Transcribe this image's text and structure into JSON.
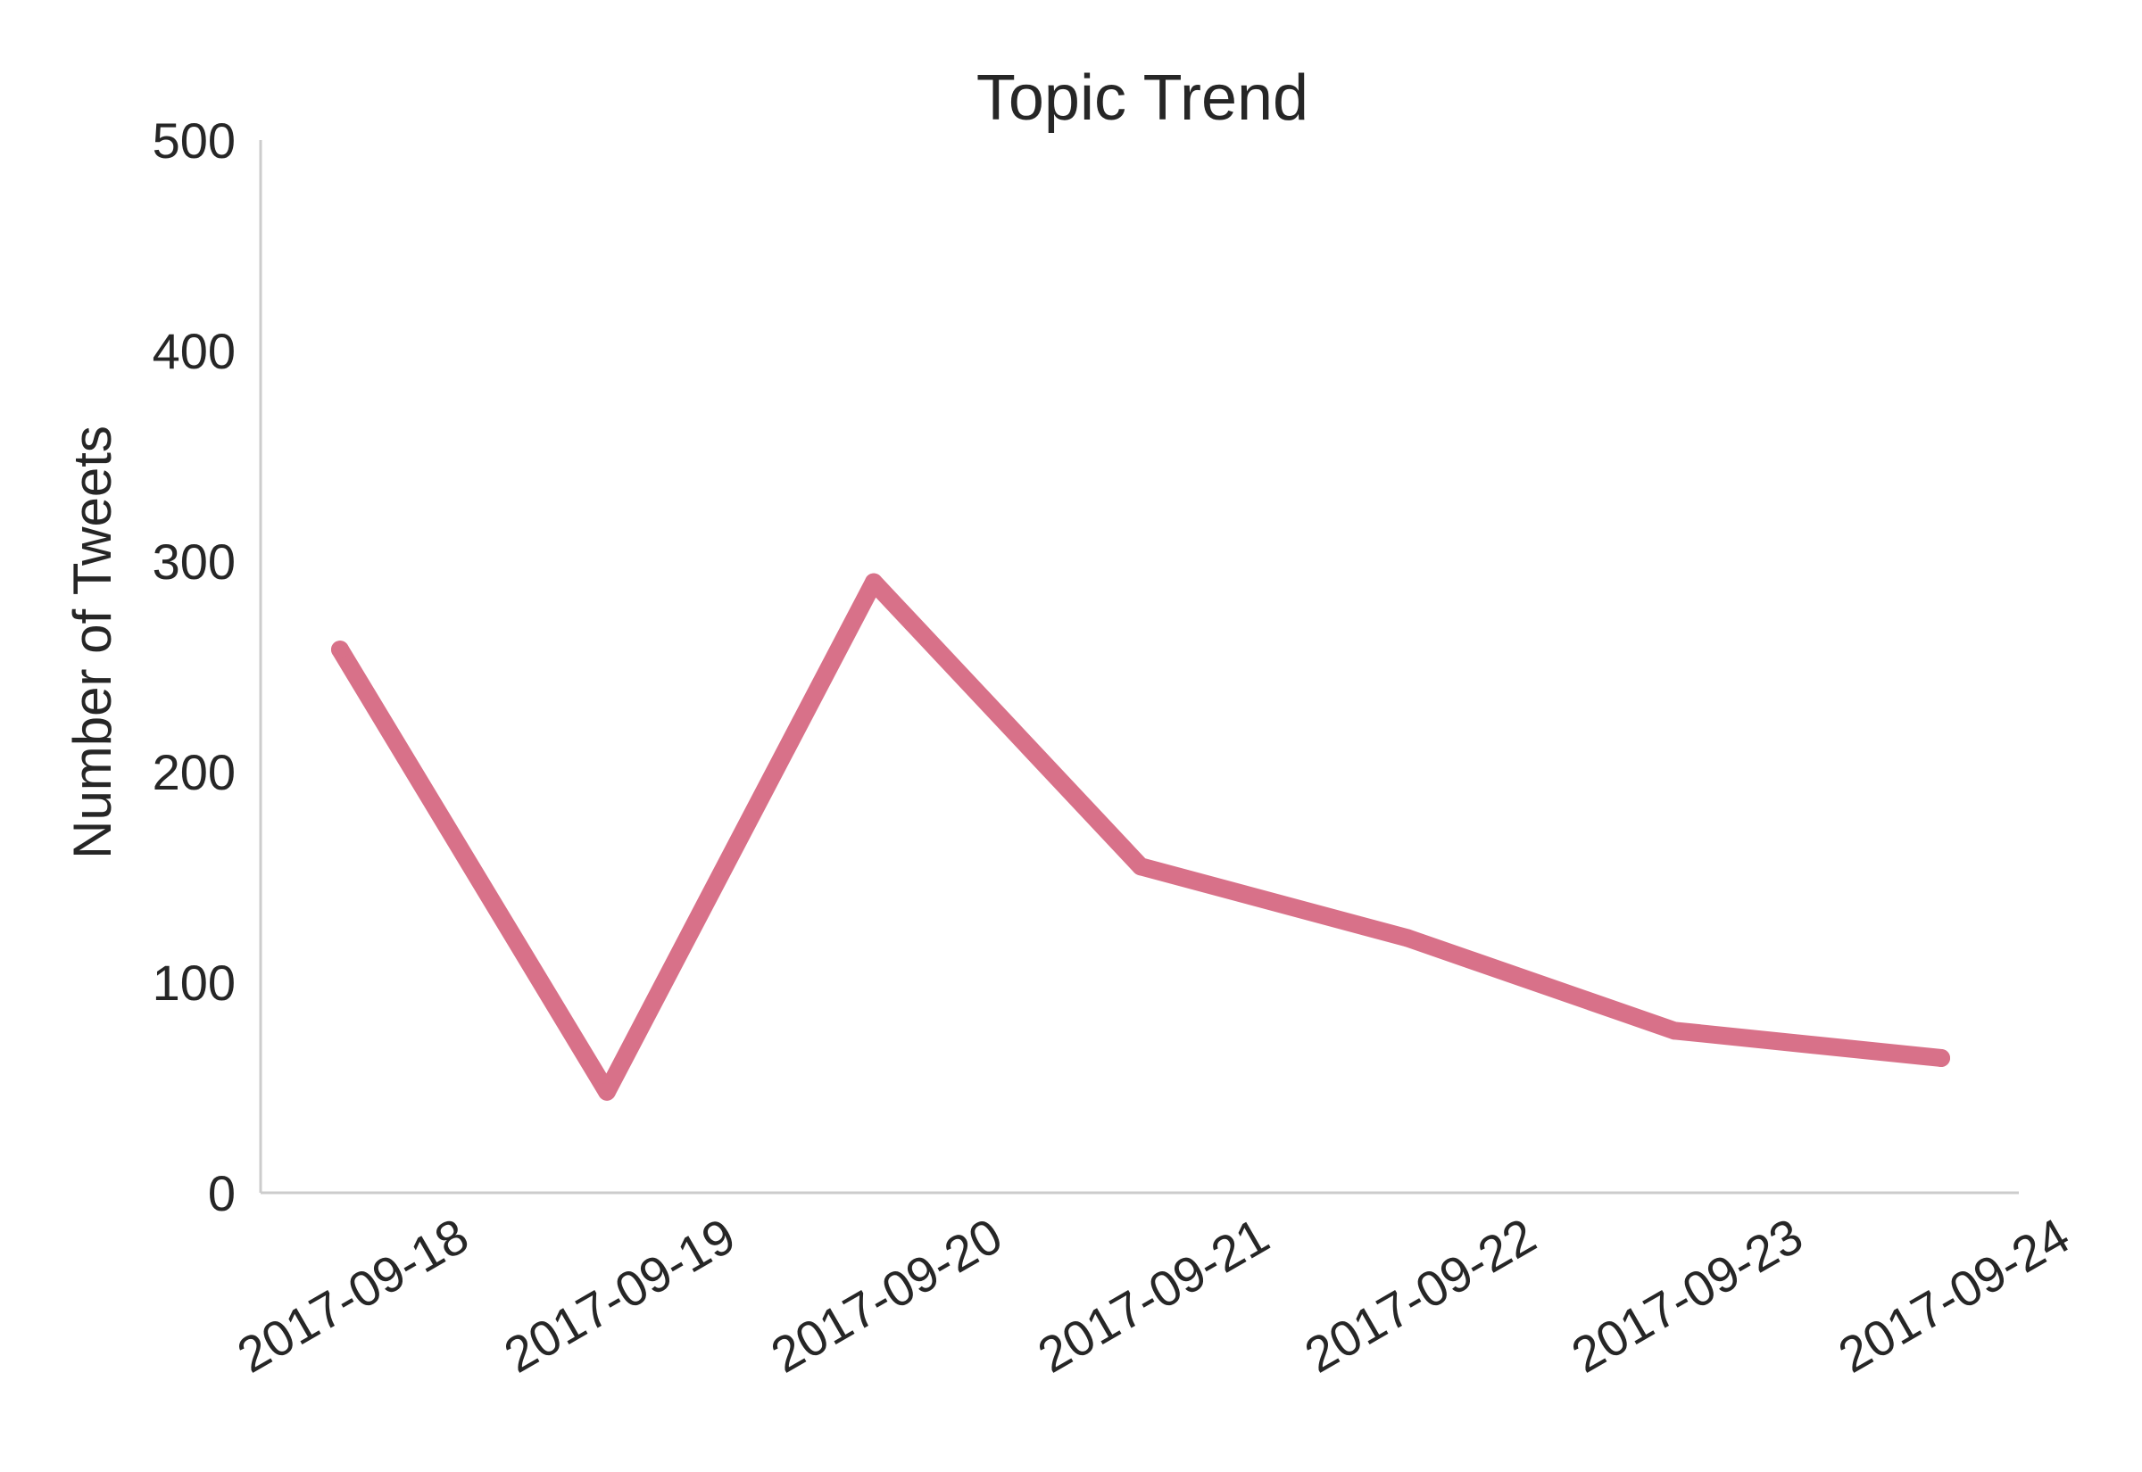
{
  "chart_data": {
    "type": "line",
    "title": "Topic Trend",
    "xlabel": "",
    "ylabel": "Number of Tweets",
    "categories": [
      "2017-09-18",
      "2017-09-19",
      "2017-09-20",
      "2017-09-21",
      "2017-09-22",
      "2017-09-23",
      "2017-09-24"
    ],
    "series": [
      {
        "values": [
          258,
          48,
          290,
          155,
          121,
          77,
          64
        ],
        "color": "#d87189"
      }
    ],
    "ylim": [
      0,
      500
    ],
    "yticks": [
      0,
      100,
      200,
      300,
      400,
      500
    ],
    "ytick_labels": [
      "0",
      "100",
      "200",
      "300",
      "400",
      "500"
    ],
    "grid": false,
    "legend": "none"
  }
}
